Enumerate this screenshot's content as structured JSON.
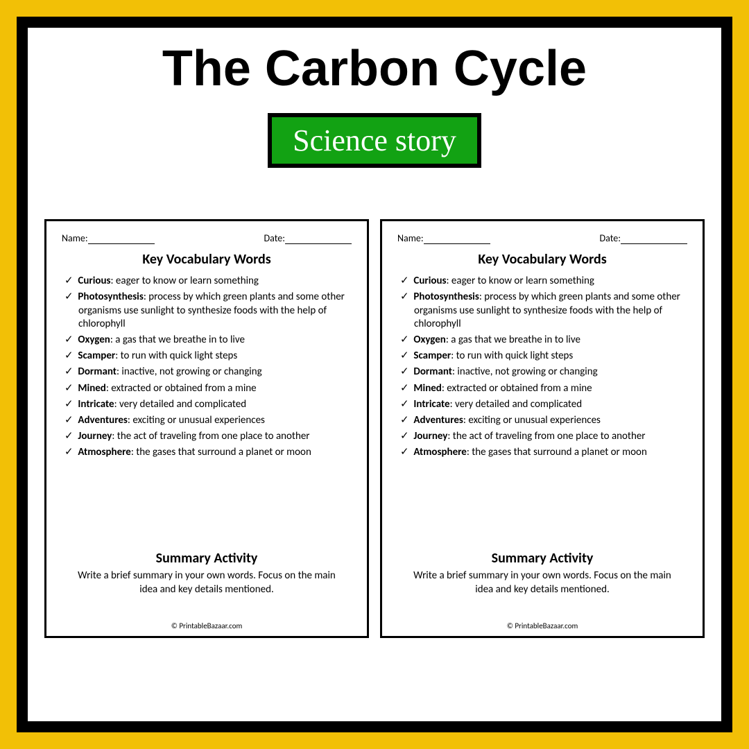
{
  "colors": {
    "frame_outer": "#f2c006",
    "frame_border": "#000000",
    "background": "#ffffff",
    "badge_bg": "#12a213",
    "badge_border": "#000000",
    "badge_text": "#ffffff",
    "title_color": "#000000"
  },
  "title": "The Carbon Cycle",
  "badge": "Science story",
  "worksheet": {
    "name_label": "Name:",
    "date_label": "Date:",
    "vocab_title": "Key Vocabulary Words",
    "summary_title": "Summary Activity",
    "summary_text": "Write a brief summary in your own words. Focus on the main idea and key details mentioned.",
    "copyright": "© PrintableBazaar.com",
    "vocab": [
      {
        "term": "Curious",
        "def": "eager to know or learn something"
      },
      {
        "term": "Photosynthesis",
        "def": "process by which green plants and some other organisms use sunlight to synthesize foods with the help of chlorophyll"
      },
      {
        "term": "Oxygen",
        "def": "a gas that we breathe in to live"
      },
      {
        "term": "Scamper",
        "def": "to run with quick light steps"
      },
      {
        "term": "Dormant",
        "def": "inactive, not growing or changing"
      },
      {
        "term": "Mined",
        "def": "extracted or obtained from a mine"
      },
      {
        "term": "Intricate",
        "def": "very detailed and complicated"
      },
      {
        "term": "Adventures",
        "def": "exciting or unusual experiences"
      },
      {
        "term": "Journey",
        "def": "the act of traveling from one place to another"
      },
      {
        "term": "Atmosphere",
        "def": "the gases that surround a planet or moon"
      }
    ]
  }
}
